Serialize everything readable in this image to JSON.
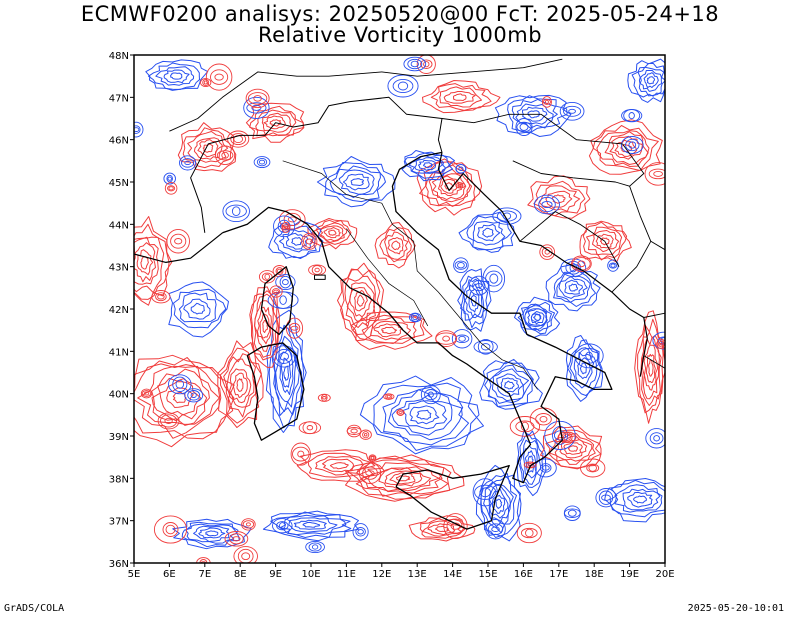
{
  "header": {
    "title": "ECMWF0200 analisys: 20250520@00 FcT: 2025-05-24+18",
    "subtitle": "Relative Vorticity 1000mb"
  },
  "map": {
    "lon_range": [
      5,
      20
    ],
    "lat_range": [
      36,
      48
    ],
    "x_ticks": [
      "5E",
      "6E",
      "7E",
      "8E",
      "9E",
      "10E",
      "11E",
      "12E",
      "13E",
      "14E",
      "15E",
      "16E",
      "17E",
      "18E",
      "19E",
      "20E"
    ],
    "y_ticks": [
      "36N",
      "37N",
      "38N",
      "39N",
      "40N",
      "41N",
      "42N",
      "43N",
      "44N",
      "45N",
      "46N",
      "47N",
      "48N"
    ],
    "field": "relative vorticity",
    "colors": {
      "positive": "#f03c3c",
      "negative": "#2850f0",
      "coast": "#000000"
    }
  },
  "footer": {
    "left": "GrADS/COLA",
    "right": "2025-05-20-10:01"
  }
}
